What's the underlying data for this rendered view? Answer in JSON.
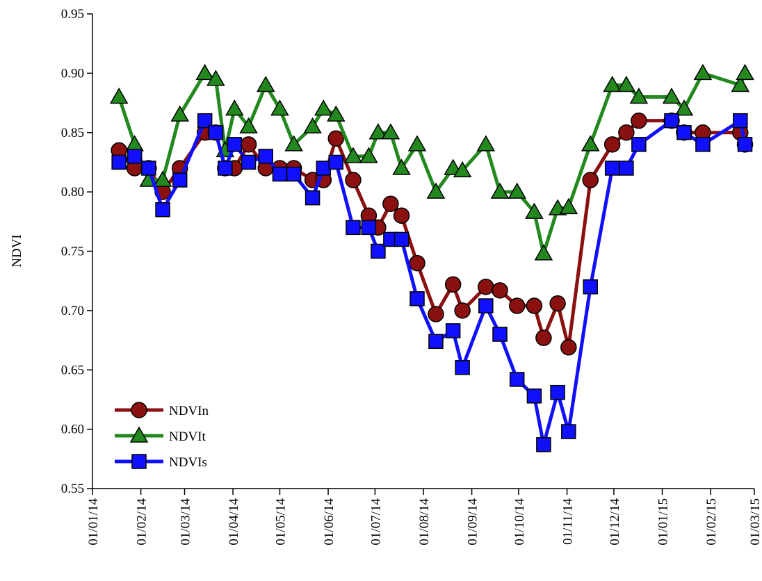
{
  "chart_data": {
    "type": "line",
    "ylabel": "NDVI",
    "x": [
      "2014-01-18",
      "2014-01-28",
      "2014-02-06",
      "2014-02-15",
      "2014-02-26",
      "2014-03-14",
      "2014-03-21",
      "2014-03-27",
      "2014-04-02",
      "2014-04-11",
      "2014-04-22",
      "2014-05-01",
      "2014-05-10",
      "2014-05-22",
      "2014-05-29",
      "2014-06-06",
      "2014-06-17",
      "2014-06-27",
      "2014-07-03",
      "2014-07-11",
      "2014-07-18",
      "2014-07-28",
      "2014-08-09",
      "2014-08-20",
      "2014-08-26",
      "2014-09-10",
      "2014-09-19",
      "2014-09-30",
      "2014-10-11",
      "2014-10-17",
      "2014-10-26",
      "2014-11-02",
      "2014-11-16",
      "2014-11-30",
      "2014-12-09",
      "2014-12-17",
      "2015-01-07",
      "2015-01-15",
      "2015-01-27",
      "2015-02-20",
      "2015-02-23"
    ],
    "series": [
      {
        "name": "NDVIn",
        "color": "#8b1010",
        "marker": "circle",
        "values": [
          0.835,
          0.82,
          0.82,
          0.8,
          0.82,
          0.85,
          0.85,
          0.82,
          0.82,
          0.84,
          0.82,
          0.82,
          0.82,
          0.81,
          0.81,
          0.845,
          0.81,
          0.78,
          0.77,
          0.79,
          0.78,
          0.74,
          0.697,
          0.722,
          0.7,
          0.72,
          0.717,
          0.704,
          0.704,
          0.677,
          0.706,
          0.669,
          0.81,
          0.84,
          0.85,
          0.86,
          0.86,
          0.85,
          0.85,
          0.85,
          0.84
        ]
      },
      {
        "name": "NDVIt",
        "color": "#23881e",
        "marker": "triangle",
        "values": [
          0.88,
          0.84,
          0.81,
          0.81,
          0.865,
          0.9,
          0.895,
          0.835,
          0.87,
          0.855,
          0.89,
          0.87,
          0.84,
          0.855,
          0.87,
          0.865,
          0.83,
          0.83,
          0.85,
          0.85,
          0.82,
          0.84,
          0.8,
          0.82,
          0.818,
          0.84,
          0.8,
          0.8,
          0.783,
          0.748,
          0.786,
          0.787,
          0.84,
          0.89,
          0.89,
          0.88,
          0.88,
          0.87,
          0.9,
          0.89,
          0.9
        ]
      },
      {
        "name": "NDVIs",
        "color": "#1010ff",
        "marker": "square",
        "values": [
          0.825,
          0.83,
          0.82,
          0.785,
          0.81,
          0.86,
          0.85,
          0.82,
          0.84,
          0.825,
          0.83,
          0.815,
          0.815,
          0.795,
          0.82,
          0.825,
          0.77,
          0.77,
          0.75,
          0.76,
          0.76,
          0.71,
          0.674,
          0.683,
          0.652,
          0.704,
          0.68,
          0.642,
          0.628,
          0.587,
          0.631,
          0.598,
          0.72,
          0.82,
          0.82,
          0.84,
          0.86,
          0.85,
          0.84,
          0.86,
          0.84
        ]
      }
    ],
    "xlim": [
      "2014-01-01",
      "2015-03-01"
    ],
    "xticks": [
      {
        "value": "2014-01-01",
        "label": "01/01/14"
      },
      {
        "value": "2014-02-01",
        "label": "01/02/14"
      },
      {
        "value": "2014-03-01",
        "label": "01/03/14"
      },
      {
        "value": "2014-04-01",
        "label": "01/04/14"
      },
      {
        "value": "2014-05-01",
        "label": "01/05/14"
      },
      {
        "value": "2014-06-01",
        "label": "01/06/14"
      },
      {
        "value": "2014-07-01",
        "label": "01/07/14"
      },
      {
        "value": "2014-08-01",
        "label": "01/08/14"
      },
      {
        "value": "2014-09-01",
        "label": "01/09/14"
      },
      {
        "value": "2014-10-01",
        "label": "01/10/14"
      },
      {
        "value": "2014-11-01",
        "label": "01/11/14"
      },
      {
        "value": "2014-12-01",
        "label": "01/12/14"
      },
      {
        "value": "2015-01-01",
        "label": "01/01/15"
      },
      {
        "value": "2015-02-01",
        "label": "01/02/15"
      },
      {
        "value": "2015-03-01",
        "label": "01/03/15"
      }
    ],
    "ylim": [
      0.55,
      0.95
    ],
    "yticks": [
      0.55,
      {
        "value": 0.6,
        "label": "0.60"
      },
      0.65,
      {
        "value": 0.7,
        "label": "0.70"
      },
      0.75,
      {
        "value": 0.8,
        "label": "0.80"
      },
      0.85,
      {
        "value": 0.9,
        "label": "0.90"
      },
      0.95
    ],
    "legend": "lower left"
  }
}
